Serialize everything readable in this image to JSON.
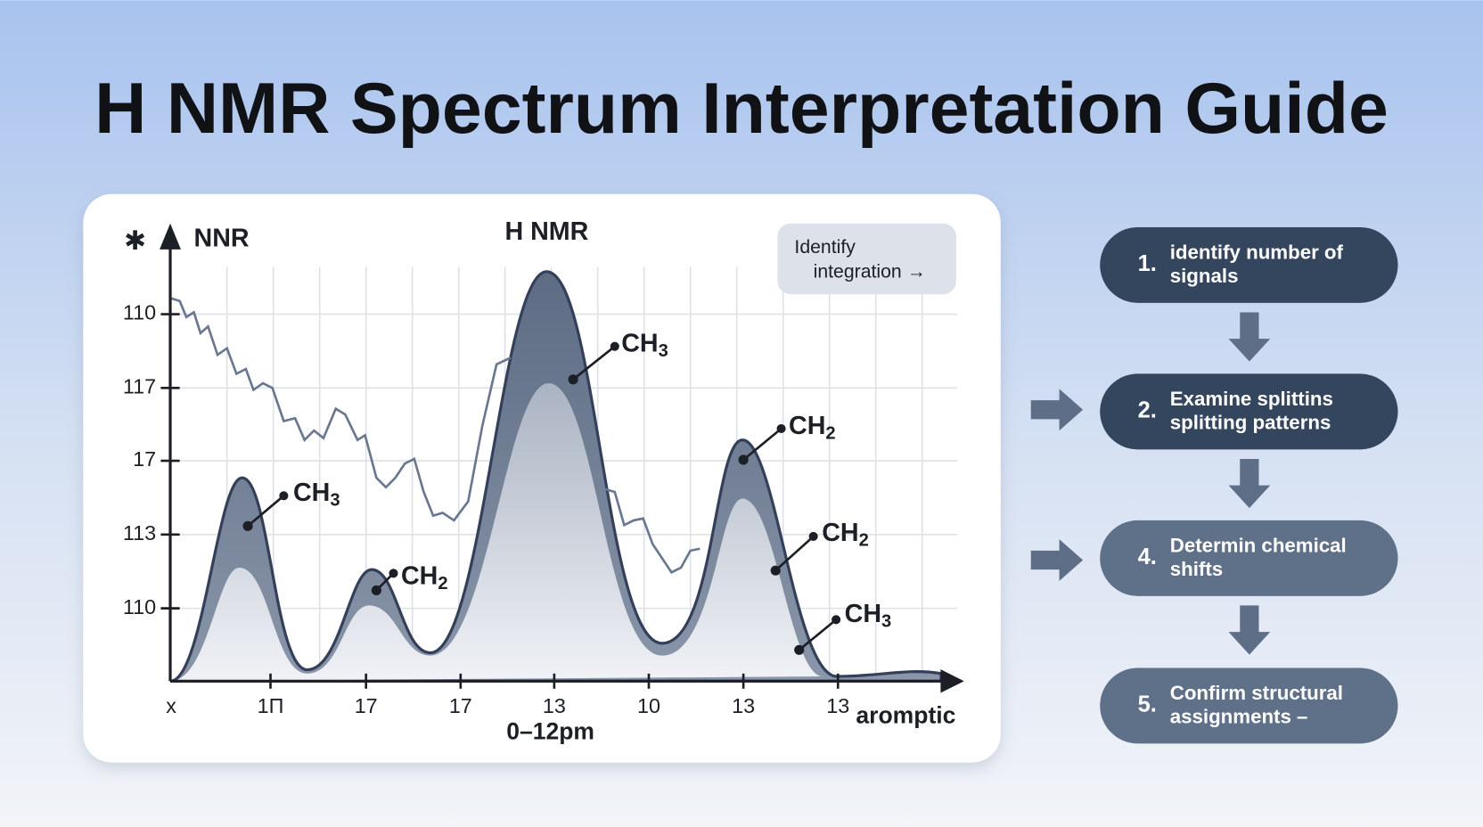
{
  "title": "H NMR Spectrum Interpretation Guide",
  "chart": {
    "star": "✱",
    "y_axis_label": "NNR",
    "title": "H NMR",
    "y_labels": [
      "110",
      "117",
      "17",
      "113",
      "110"
    ],
    "x_labels": [
      "x",
      "1П",
      "17",
      "17",
      "13",
      "10",
      "13",
      "13"
    ],
    "x_end_label": "aromptic",
    "x_title": "0–12pm",
    "callout": [
      "Identify",
      "integration →"
    ],
    "peak_labels": [
      {
        "text": "CH",
        "sub": "3"
      },
      {
        "text": "CH",
        "sub": "2"
      },
      {
        "text": "CH",
        "sub": "3"
      },
      {
        "text": "CH",
        "sub": "2"
      },
      {
        "text": "CH",
        "sub": "2"
      },
      {
        "text": "CH",
        "sub": "3"
      }
    ]
  },
  "steps": [
    {
      "number": "1.",
      "lines": [
        "identify number of",
        "signals"
      ]
    },
    {
      "number": "2.",
      "lines": [
        "Examine splittins",
        "splitting patterns"
      ]
    },
    {
      "number": "4.",
      "lines": [
        "Determin chemical",
        "shifts"
      ]
    },
    {
      "number": "5.",
      "lines": [
        "Confirm structural",
        "assignments –"
      ]
    }
  ]
}
